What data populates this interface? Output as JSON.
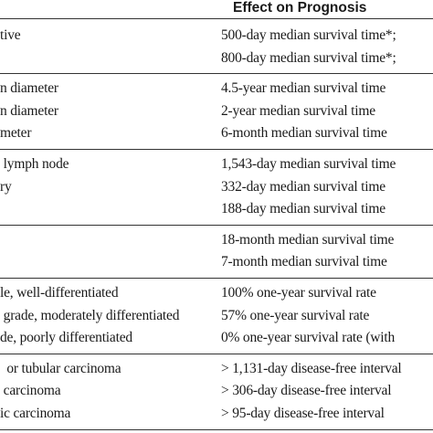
{
  "table": {
    "header": "Effect on Prognosis",
    "groups": [
      {
        "rows": [
          {
            "left": "tive",
            "right": "500-day median survival time*;"
          },
          {
            "right": "800-day median survival time*;"
          }
        ]
      },
      {
        "rows": [
          {
            "left": "n diameter",
            "right": "4.5-year median survival time"
          },
          {
            "left": "n diameter",
            "right": "2-year median survival time"
          },
          {
            "left": "meter",
            "right": "6-month median survival time"
          }
        ]
      },
      {
        "rows": [
          {
            "left": " lymph node",
            "right": "1,543-day median survival time"
          },
          {
            "left": "ry",
            "right": "332-day median survival time"
          },
          {
            "right": "188-day median survival time"
          }
        ]
      },
      {
        "rows": [
          {
            "right": "18-month median survival time"
          },
          {
            "right": "7-month median survival time"
          }
        ]
      },
      {
        "rows": [
          {
            "left": "le, well-differentiated",
            "right": "100% one-year survival rate"
          },
          {
            "left": " grade, moderately differentiated",
            "right": "57% one-year survival rate"
          },
          {
            "left": "de, poorly differentiated",
            "right": "0% one-year survival rate (with"
          }
        ]
      },
      {
        "rows": [
          {
            "left": "  or tubular carcinoma",
            "right": "> 1,131-day disease-free interval"
          },
          {
            "left": " carcinoma",
            "right": "> 306-day disease-free interval"
          },
          {
            "left": "ic carcinoma",
            "right": "> 95-day disease-free interval"
          }
        ]
      }
    ]
  }
}
